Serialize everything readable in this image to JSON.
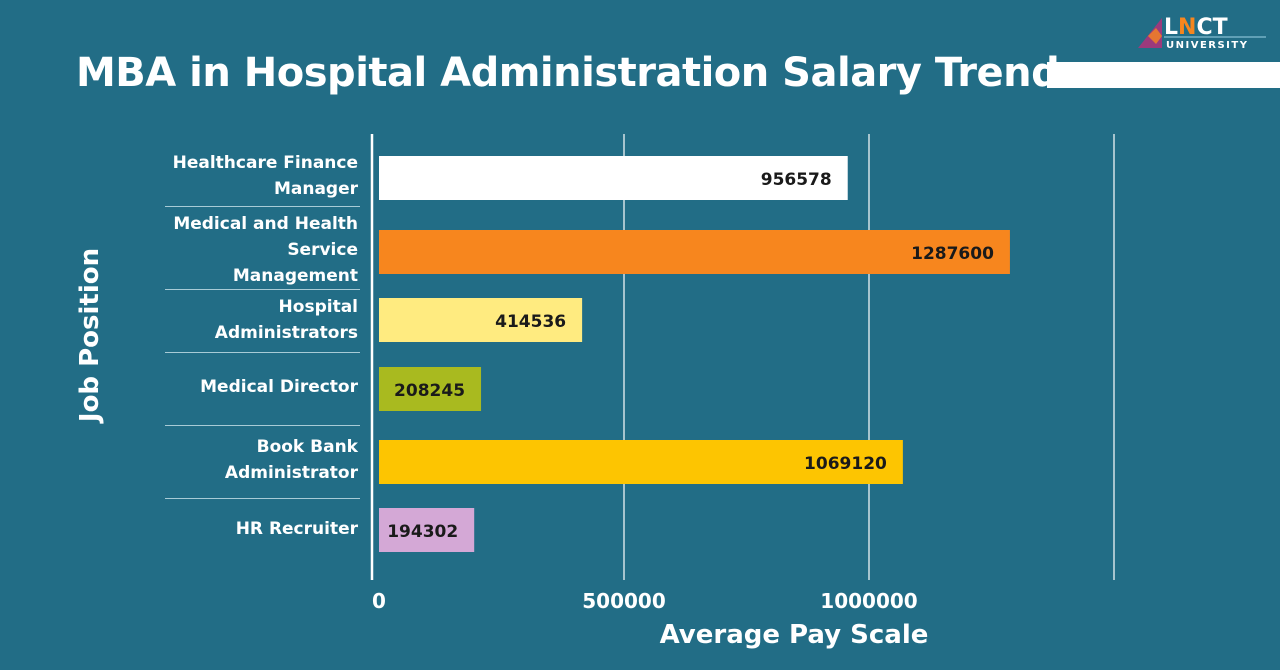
{
  "title": "MBA in Hospital Administration Salary Trends",
  "logo": {
    "text": "LNCT",
    "subtext": "UNIVERSITY"
  },
  "chart_data": {
    "type": "bar",
    "orientation": "horizontal",
    "title": "MBA in Hospital Administration Salary Trends",
    "xlabel": "Average Pay Scale",
    "ylabel": "Job Position",
    "categories": [
      "Healthcare Finance Manager",
      "Medical and Health Service Management",
      "Hospital Administrators",
      "Medical Director",
      "Book Bank Administrator",
      "HR Recruiter"
    ],
    "values": [
      956578,
      1287600,
      414536,
      208245,
      1069120,
      194302
    ],
    "colors": [
      "#ffffff",
      "#f7861e",
      "#ffeb80",
      "#a9ba1f",
      "#fdc501",
      "#d4a8d6"
    ],
    "xlim": [
      0,
      1500000
    ],
    "xticks": [
      0,
      500000,
      1000000
    ],
    "xtick_labels": [
      "0",
      "500000",
      "1000000"
    ],
    "grid": true,
    "data_labels": true
  }
}
